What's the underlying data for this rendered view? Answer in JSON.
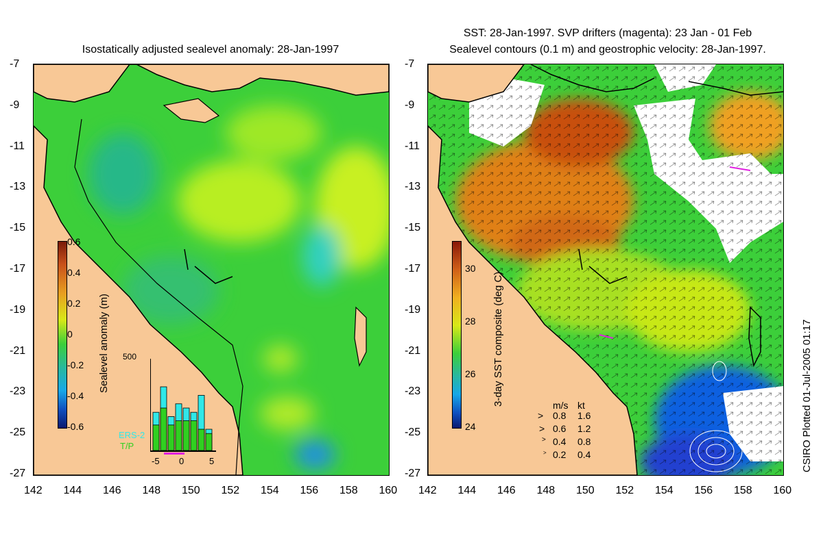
{
  "left": {
    "title": "Isostatically adjusted sealevel anomaly: 28-Jan-1997",
    "colorbar_label": "Sealevel anomaly (m)",
    "colorbar_ticks": [
      "0.6",
      "0.4",
      "0.2",
      "0",
      "-0.2",
      "-0.4",
      "-0.6"
    ],
    "hist_ymax": "500",
    "hist_xticks": [
      "-5",
      "0",
      "5"
    ],
    "hist_legend": [
      "ERS-2",
      "T/P"
    ],
    "hist_bars_ers2": [
      0.45,
      0.75,
      0.4,
      0.55,
      0.5,
      0.45,
      0.65,
      0.25
    ],
    "hist_bars_tp": [
      0.3,
      0.5,
      0.3,
      0.35,
      0.35,
      0.35,
      0.25,
      0.2
    ]
  },
  "right": {
    "title_line1": "SST: 28-Jan-1997. SVP drifters (magenta): 23 Jan - 01 Feb",
    "title_line2": "Sealevel contours (0.1 m) and geostrophic velocity: 28-Jan-1997.",
    "colorbar_label": "3-day SST composite (deg C)",
    "colorbar_ticks": [
      "30",
      "28",
      "26",
      "24"
    ],
    "legend_header": [
      "m/s",
      "kt"
    ],
    "legend_rows": [
      {
        "ms": "0.8",
        "kt": "1.6"
      },
      {
        "ms": "0.6",
        "kt": "1.2"
      },
      {
        "ms": "0.4",
        "kt": "0.8"
      },
      {
        "ms": "0.2",
        "kt": "0.4"
      }
    ]
  },
  "axes": {
    "lat_ticks": [
      "-7",
      "-9",
      "-11",
      "-13",
      "-15",
      "-17",
      "-19",
      "-21",
      "-23",
      "-25",
      "-27"
    ],
    "lon_ticks": [
      "142",
      "144",
      "146",
      "148",
      "150",
      "152",
      "154",
      "156",
      "158",
      "160"
    ]
  },
  "credit": "CSIRO Plotted 01-Jul-2005 01:17",
  "colors": {
    "land": "#f8c896",
    "sea_green": "#3ccf3a",
    "sea_yellow": "#c8f020",
    "sea_cyan": "#38c8c8",
    "sst_orange": "#e08018",
    "sst_red": "#b84010",
    "sst_blue": "#1060e0",
    "cloud": "#ffffff"
  }
}
